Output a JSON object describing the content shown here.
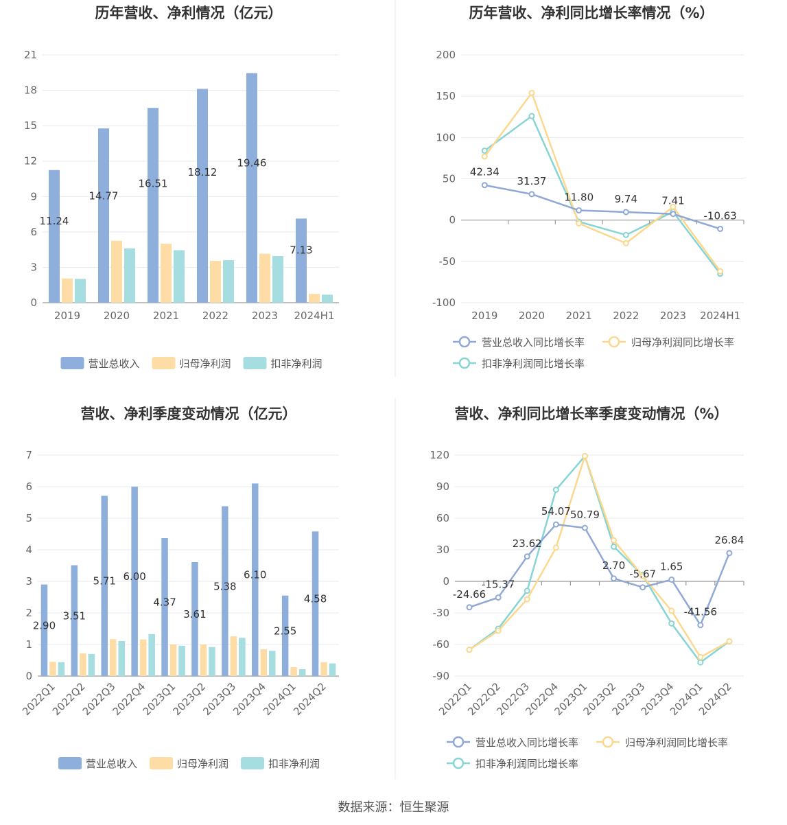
{
  "colors": {
    "revenue": "#8eaedc",
    "parent_profit": "#fedca5",
    "deducted_profit": "#a5dde0",
    "revenue_line": "#8fa8d6",
    "parent_line": "#fbd88e",
    "deducted_line": "#86d4d3"
  },
  "footer": {
    "source": "数据来源：恒生聚源"
  },
  "chart_data": [
    {
      "id": "annual_amounts",
      "type": "bar",
      "title": "历年营收、净利情况（亿元）",
      "categories": [
        "2019",
        "2020",
        "2021",
        "2022",
        "2023",
        "2024H1"
      ],
      "ylim": [
        0,
        21
      ],
      "yticks": [
        0,
        3,
        6,
        9,
        12,
        15,
        18,
        21
      ],
      "legend_position": "bottom",
      "series": [
        {
          "name": "营业总收入",
          "values": [
            11.24,
            14.77,
            16.51,
            18.12,
            19.46,
            7.13
          ],
          "labels": [
            "11.24",
            "14.77",
            "16.51",
            "18.12",
            "19.46",
            "7.13"
          ]
        },
        {
          "name": "归母净利润",
          "values": [
            2.05,
            5.25,
            5.0,
            3.55,
            4.15,
            0.75
          ]
        },
        {
          "name": "扣非净利润",
          "values": [
            2.02,
            4.6,
            4.45,
            3.6,
            3.95,
            0.68
          ]
        }
      ]
    },
    {
      "id": "annual_growth",
      "type": "line",
      "title": "历年营收、净利同比增长率情况（%）",
      "categories": [
        "2019",
        "2020",
        "2021",
        "2022",
        "2023",
        "2024H1"
      ],
      "ylim": [
        -100,
        200
      ],
      "yticks": [
        -100,
        -50,
        0,
        50,
        100,
        150,
        200
      ],
      "legend_position": "bottom",
      "series": [
        {
          "name": "营业总收入同比增长率",
          "values": [
            42.34,
            31.37,
            11.8,
            9.74,
            7.41,
            -10.63
          ],
          "labels": [
            "42.34",
            "31.37",
            "11.80",
            "9.74",
            "7.41",
            "-10.63"
          ]
        },
        {
          "name": "归母净利润同比增长率",
          "values": [
            77,
            154,
            -4,
            -28,
            16,
            -62
          ]
        },
        {
          "name": "扣非净利润同比增长率",
          "values": [
            84,
            126,
            -2,
            -18,
            10,
            -65
          ]
        }
      ]
    },
    {
      "id": "quarterly_amounts",
      "type": "bar",
      "title": "营收、净利季度变动情况（亿元）",
      "categories": [
        "2022Q1",
        "2022Q2",
        "2022Q3",
        "2022Q4",
        "2023Q1",
        "2023Q2",
        "2023Q3",
        "2023Q4",
        "2024Q1",
        "2024Q2"
      ],
      "ylim": [
        0,
        7
      ],
      "yticks": [
        0,
        1,
        2,
        3,
        4,
        5,
        6,
        7
      ],
      "legend_position": "bottom",
      "series": [
        {
          "name": "营业总收入",
          "values": [
            2.9,
            3.51,
            5.71,
            6.0,
            4.37,
            3.61,
            5.38,
            6.1,
            2.55,
            4.58
          ],
          "labels": [
            "2.90",
            "3.51",
            "5.71",
            "6.00",
            "4.37",
            "3.61",
            "5.38",
            "6.10",
            "2.55",
            "4.58"
          ]
        },
        {
          "name": "归母净利润",
          "values": [
            0.45,
            0.72,
            1.17,
            1.16,
            1.0,
            1.0,
            1.26,
            0.85,
            0.28,
            0.44
          ]
        },
        {
          "name": "扣非净利润",
          "values": [
            0.44,
            0.7,
            1.11,
            1.33,
            0.96,
            0.92,
            1.21,
            0.8,
            0.22,
            0.4
          ]
        }
      ]
    },
    {
      "id": "quarterly_growth",
      "type": "line",
      "title": "营收、净利同比增长率季度变动情况（%）",
      "categories": [
        "2022Q1",
        "2022Q2",
        "2022Q3",
        "2022Q4",
        "2023Q1",
        "2023Q2",
        "2023Q3",
        "2023Q4",
        "2024Q1",
        "2024Q2"
      ],
      "ylim": [
        -90,
        120
      ],
      "yticks": [
        -90,
        -60,
        -30,
        0,
        30,
        60,
        90,
        120
      ],
      "legend_position": "bottom",
      "series": [
        {
          "name": "营业总收入同比增长率",
          "values": [
            -24.66,
            -15.37,
            23.62,
            54.07,
            50.79,
            2.7,
            -5.67,
            1.65,
            -41.56,
            26.84
          ],
          "labels": [
            "-24.66",
            "-15.37",
            "23.62",
            "54.07",
            "50.79",
            "2.70",
            "-5.67",
            "1.65",
            "-41.56",
            "26.84"
          ]
        },
        {
          "name": "归母净利润同比增长率",
          "values": [
            -65,
            -47,
            -17,
            32,
            119,
            39,
            5,
            -28,
            -72,
            -57
          ]
        },
        {
          "name": "扣非净利润同比增长率",
          "values": [
            -65,
            -45,
            -9,
            87,
            119,
            33,
            6,
            -40,
            -77,
            -57
          ]
        }
      ]
    }
  ]
}
